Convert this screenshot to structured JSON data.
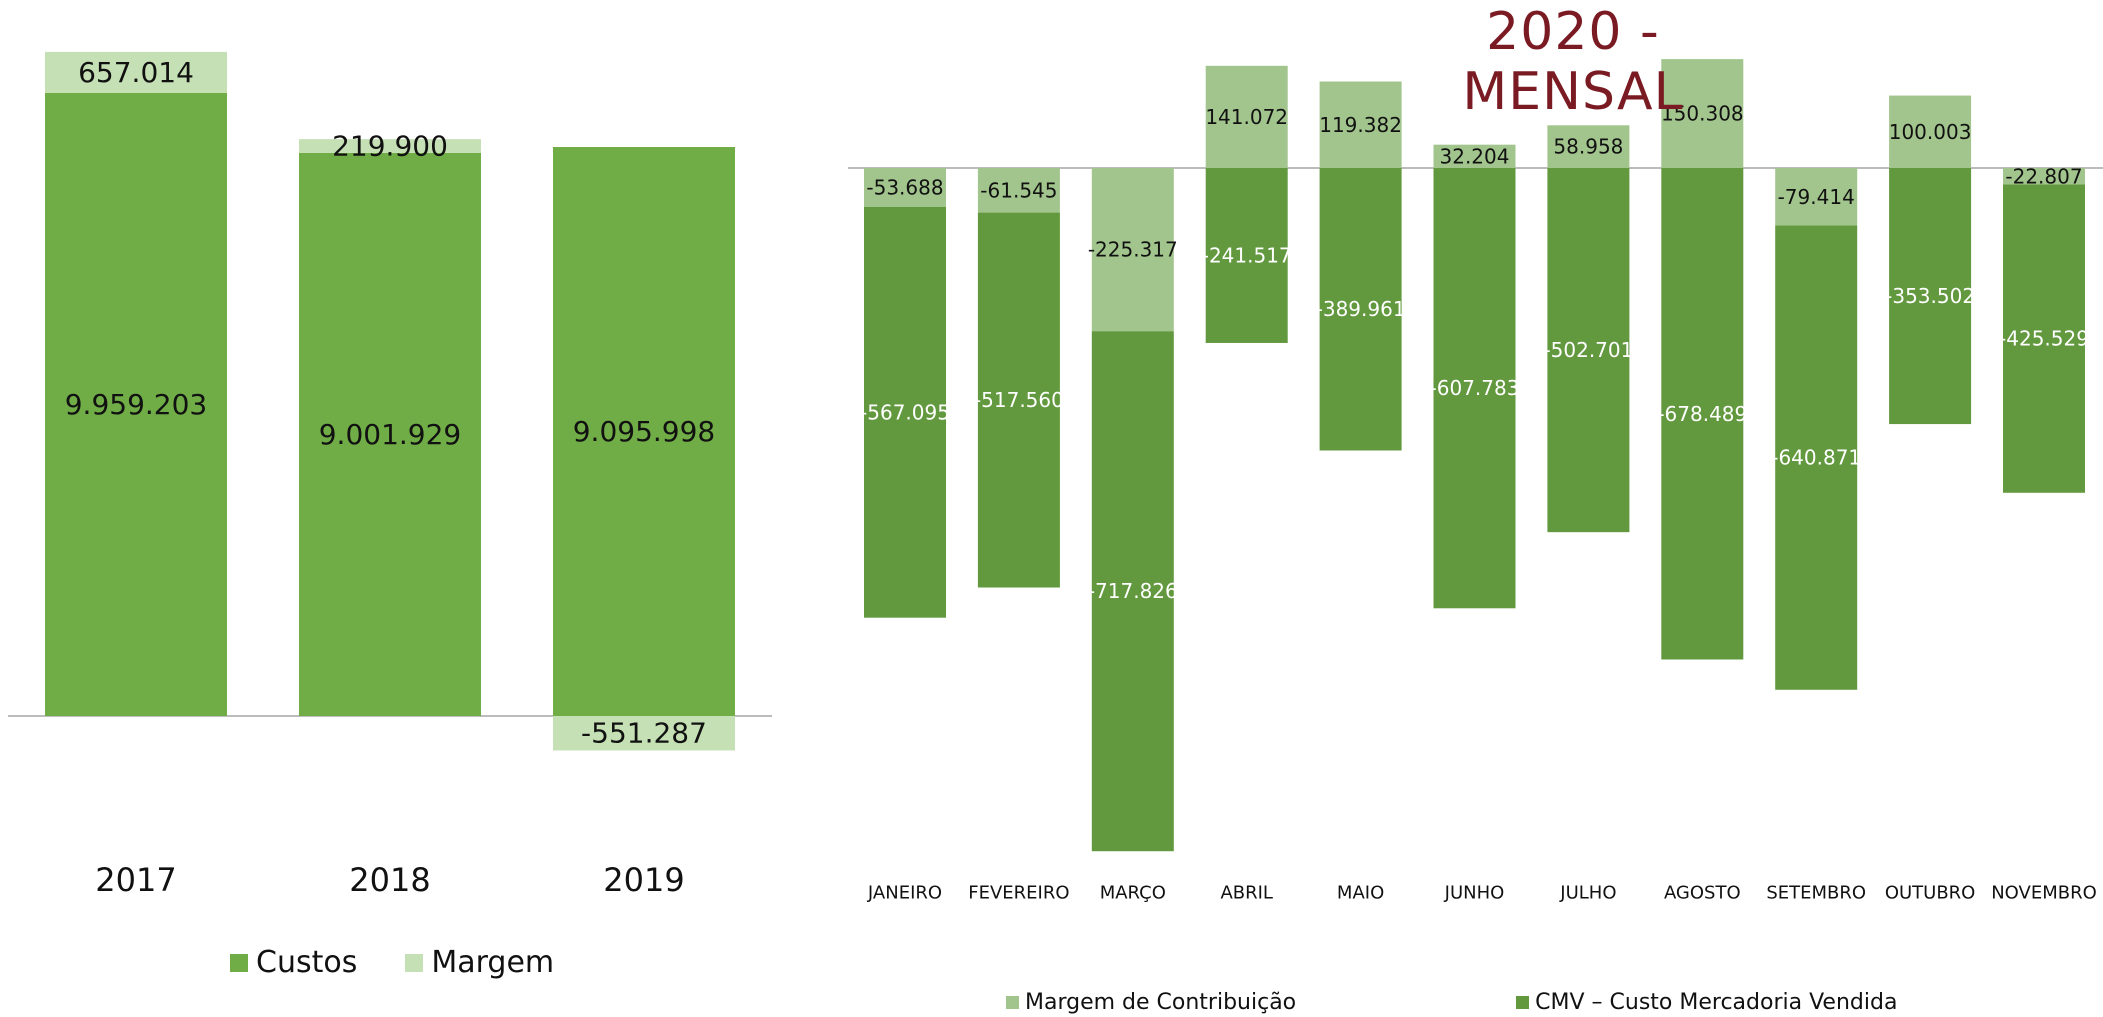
{
  "chart_data": [
    {
      "type": "bar",
      "stacked": true,
      "categories": [
        "2017",
        "2018",
        "2019"
      ],
      "series": [
        {
          "name": "Custos",
          "values": [
            9959203,
            9001929,
            9095998
          ],
          "labels": [
            "9.959.203",
            "9.001.929",
            "9.095.998"
          ],
          "color": "#70ad47",
          "label_color": "#111111"
        },
        {
          "name": "Margem",
          "values": [
            657014,
            219900,
            -551287
          ],
          "labels": [
            "657.014",
            "219.900",
            "-551.287"
          ],
          "color": "#c5e0b4",
          "label_color": "#111111"
        }
      ],
      "legend": "bottom",
      "grid": false
    },
    {
      "type": "bar",
      "stacked": true,
      "title": "2020 - MENSAL",
      "categories": [
        "JANEIRO",
        "FEVEREIRO",
        "MARÇO",
        "ABRIL",
        "MAIO",
        "JUNHO",
        "JULHO",
        "AGOSTO",
        "SETEMBRO",
        "OUTUBRO",
        "NOVEMBRO"
      ],
      "series": [
        {
          "name": "Margem de Contribuição",
          "values": [
            -53688,
            -61545,
            -225317,
            141072,
            119382,
            32204,
            58958,
            150308,
            -79414,
            100003,
            -22807
          ],
          "labels": [
            "-53.688",
            "-61.545",
            "-225.317",
            "141.072",
            "119.382",
            "32.204",
            "58.958",
            "150.308",
            "-79.414",
            "100.003",
            "-22.807"
          ],
          "color": "#a2c58d",
          "label_color": "#111111"
        },
        {
          "name": "CMV – Custo Mercadoria Vendida",
          "values": [
            -567095,
            -517560,
            -717826,
            -241517,
            -389961,
            -607783,
            -502701,
            -678489,
            -640871,
            -353502,
            -425529
          ],
          "labels": [
            "-567.095",
            "-517.560",
            "-717.826",
            "-241.517",
            "-389.961",
            "-607.783",
            "-502.701",
            "-678.489",
            "-640.871",
            "-353.502",
            "-425.529"
          ],
          "color": "#62993e",
          "label_color": "#ffffff"
        }
      ],
      "legend": "bottom",
      "grid": false
    }
  ]
}
